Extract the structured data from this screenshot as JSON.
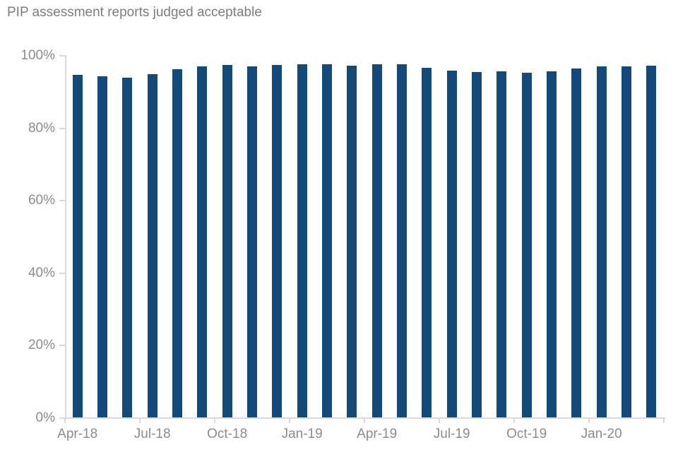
{
  "chart_data": {
    "type": "bar",
    "title": "PIP assessment reports judged acceptable",
    "xlabel": "",
    "ylabel": "",
    "ylim": [
      0,
      100
    ],
    "grid": false,
    "legend": "none",
    "y_tick_labels": [
      "0%",
      "20%",
      "40%",
      "60%",
      "80%",
      "100%"
    ],
    "y_tick_values": [
      0,
      20,
      40,
      60,
      80,
      100
    ],
    "x_label_interval": 3,
    "visible_x_labels": [
      "Apr-18",
      "Jul-18",
      "Oct-18",
      "Jan-19",
      "Apr-19",
      "Jul-19",
      "Oct-19",
      "Jan-20"
    ],
    "categories": [
      "Apr-18",
      "May-18",
      "Jun-18",
      "Jul-18",
      "Aug-18",
      "Sep-18",
      "Oct-18",
      "Nov-18",
      "Dec-18",
      "Jan-19",
      "Feb-19",
      "Mar-19",
      "Apr-19",
      "May-19",
      "Jun-19",
      "Jul-19",
      "Aug-19",
      "Sep-19",
      "Oct-19",
      "Nov-19",
      "Dec-19",
      "Jan-20",
      "Feb-20",
      "Mar-20"
    ],
    "values": [
      94.6,
      94.2,
      93.8,
      94.7,
      96.1,
      96.9,
      97.2,
      96.8,
      97.2,
      97.4,
      97.4,
      97.0,
      97.4,
      97.5,
      96.5,
      95.7,
      95.3,
      95.6,
      95.2,
      95.6,
      96.2,
      96.8,
      96.8,
      97.0
    ],
    "colors": {
      "bar": "#134a7a",
      "title_text": "#7b7d80",
      "axis_text": "#8a8c8e",
      "axis_line": "#d7d9da",
      "background": "#ffffff"
    }
  }
}
